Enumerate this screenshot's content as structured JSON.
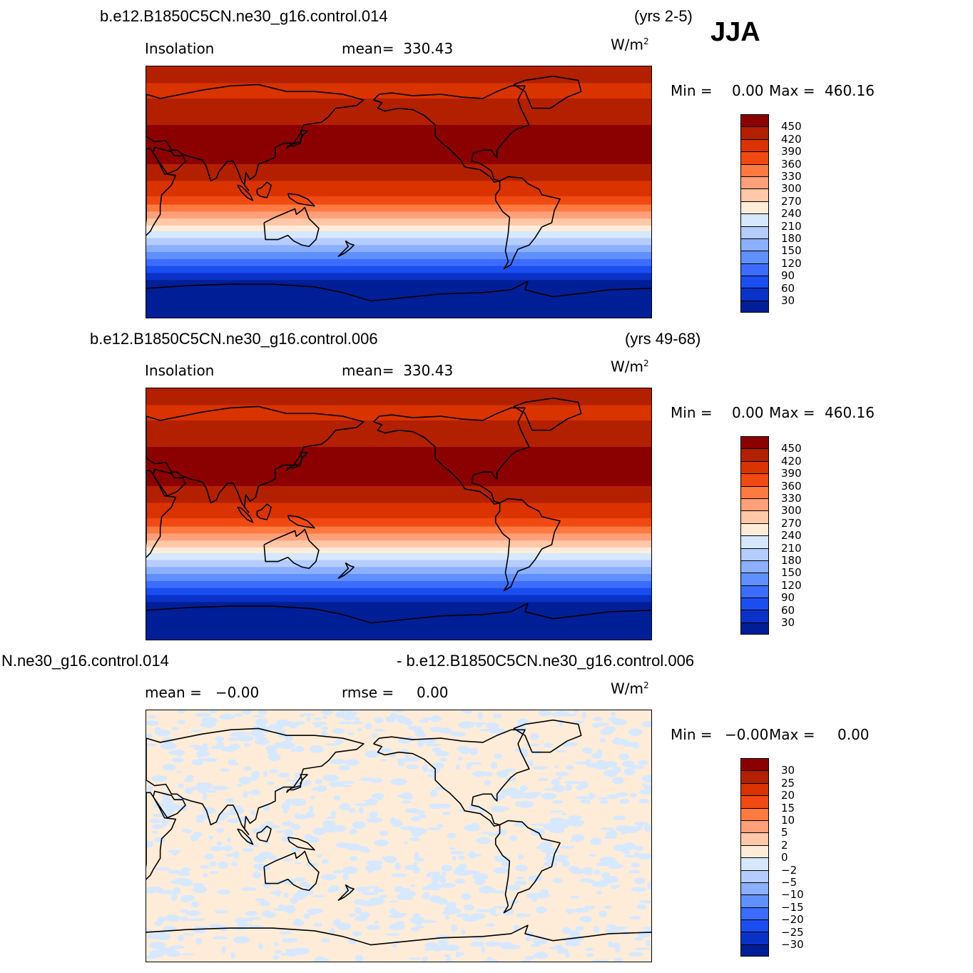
{
  "season": "JJA",
  "units": "W/m",
  "units_exp": "2",
  "panels": [
    {
      "case_title": "b.e12.B1850C5CN.ne30_g16.control.014",
      "years": "(yrs 2-5)",
      "var_label": "Insolation",
      "stat1": "mean=  330.43",
      "stat2": "",
      "min_label": "Min =",
      "min_value": "0.00",
      "max_label": "Max =",
      "max_value": "460.16",
      "field": "insolation"
    },
    {
      "case_title": "b.e12.B1850C5CN.ne30_g16.control.006",
      "years": "(yrs 49-68)",
      "var_label": "Insolation",
      "stat1": "mean=  330.43",
      "stat2": "",
      "min_label": "Min =",
      "min_value": "0.00",
      "max_label": "Max =",
      "max_value": "460.16",
      "field": "insolation"
    },
    {
      "case_title": "N.ne30_g16.control.014",
      "years": "- b.e12.B1850C5CN.ne30_g16.control.006",
      "var_label": "mean =   −0.00",
      "stat1": "rmse =     0.00",
      "stat2": "",
      "min_label": "Min =",
      "min_value": "−0.00",
      "max_label": "Max =",
      "max_value": "0.00",
      "field": "difference"
    }
  ],
  "colorbars": {
    "insolation": {
      "labels": [
        "450",
        "420",
        "390",
        "360",
        "330",
        "300",
        "270",
        "240",
        "210",
        "180",
        "150",
        "120",
        "90",
        "60",
        "30"
      ],
      "colors": [
        "#8b0000",
        "#b22000",
        "#d93300",
        "#f04a12",
        "#ff7a40",
        "#ffa07a",
        "#ffc8a8",
        "#ffecd8",
        "#d6e8ff",
        "#b4ccff",
        "#8cafff",
        "#6090ff",
        "#3c6cff",
        "#1b4ef0",
        "#0a32c8",
        "#001e96"
      ]
    },
    "difference": {
      "labels": [
        "30",
        "25",
        "20",
        "15",
        "10",
        "5",
        "2",
        "0",
        "−2",
        "−5",
        "−10",
        "−15",
        "−20",
        "−25",
        "−30"
      ],
      "colors": [
        "#8b0000",
        "#b22000",
        "#d93300",
        "#f04a12",
        "#ff7a40",
        "#ffa07a",
        "#ffc8a8",
        "#ffecd8",
        "#d6e8ff",
        "#b4ccff",
        "#8cafff",
        "#6090ff",
        "#3c6cff",
        "#1b4ef0",
        "#0a32c8",
        "#001e96"
      ]
    }
  },
  "insolation_bands": [
    {
      "lat_top": 90,
      "value": 435
    },
    {
      "lat_top": 78,
      "value": 405
    },
    {
      "lat_top": 67,
      "value": 420
    },
    {
      "lat_top": 48,
      "value": 455
    },
    {
      "lat_top": 20,
      "value": 435
    },
    {
      "lat_top": 13,
      "value": 420
    },
    {
      "lat_top": 8,
      "value": 405
    },
    {
      "lat_top": 2,
      "value": 390
    },
    {
      "lat_top": -3,
      "value": 375
    },
    {
      "lat_top": -9,
      "value": 345
    },
    {
      "lat_top": -14,
      "value": 315
    },
    {
      "lat_top": -19,
      "value": 285
    },
    {
      "lat_top": -24,
      "value": 255
    },
    {
      "lat_top": -28,
      "value": 225
    },
    {
      "lat_top": -33,
      "value": 195
    },
    {
      "lat_top": -38,
      "value": 165
    },
    {
      "lat_top": -43,
      "value": 135
    },
    {
      "lat_top": -48,
      "value": 105
    },
    {
      "lat_top": -53,
      "value": 75
    },
    {
      "lat_top": -58,
      "value": 45
    },
    {
      "lat_top": -63,
      "value": 15
    }
  ]
}
